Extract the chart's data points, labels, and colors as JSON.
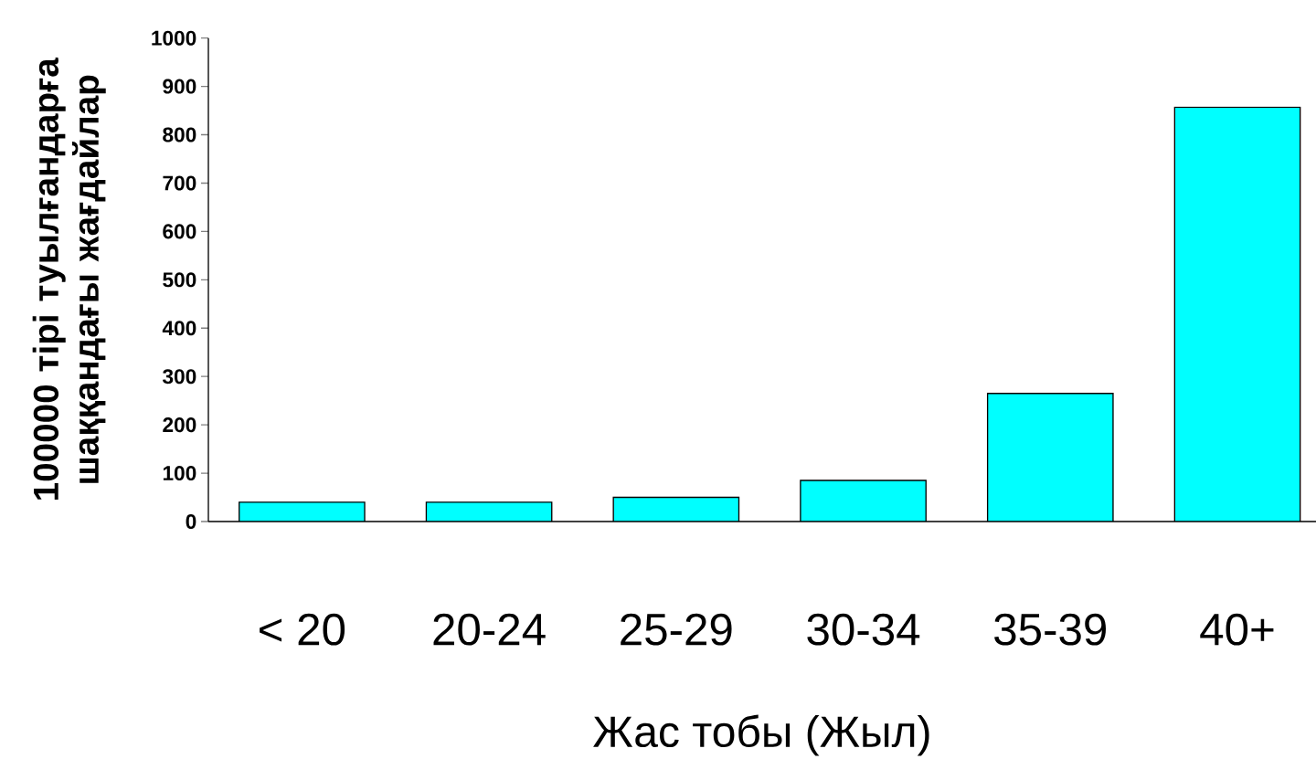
{
  "chart_data": {
    "type": "bar",
    "xlabel": "Жас тобы (Жыл)",
    "ylabel": "100000 тірі туылғандарға шаққандағы жағдайлар",
    "categories": [
      "< 20",
      "20-24",
      "25-29",
      "30-34",
      "35-39",
      "40+"
    ],
    "values": [
      40,
      40,
      50,
      85,
      265,
      857
    ],
    "color": "#00ffff",
    "ylim": [
      0,
      1000
    ],
    "yticks": [
      0,
      100,
      200,
      300,
      400,
      500,
      600,
      700,
      800,
      900,
      1000
    ],
    "grid": false
  }
}
